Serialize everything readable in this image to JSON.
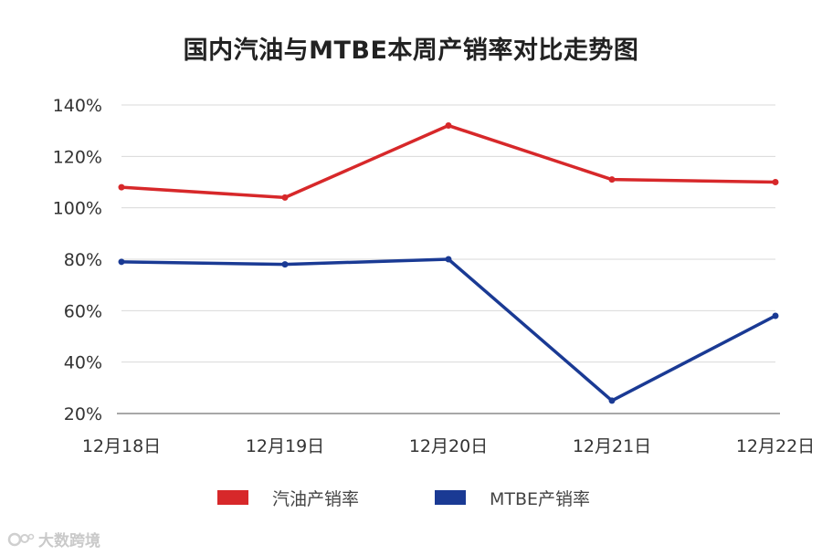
{
  "chart_data": {
    "type": "line",
    "title": "国内汽油与MTBE本周产销率对比走势图",
    "categories": [
      "12月18日",
      "12月19日",
      "12月20日",
      "12月21日",
      "12月22日"
    ],
    "series": [
      {
        "name": "汽油产销率",
        "values": [
          108,
          104,
          132,
          111,
          110
        ],
        "color": "#d7282a"
      },
      {
        "name": "MTBE产销率",
        "values": [
          79,
          78,
          80,
          25,
          58
        ],
        "color": "#1a3a94"
      }
    ],
    "ylim": [
      20,
      140
    ],
    "yticks": [
      20,
      40,
      60,
      80,
      100,
      120,
      140
    ],
    "ytick_labels": [
      "20%",
      "40%",
      "60%",
      "80%",
      "100%",
      "120%",
      "140%"
    ],
    "xlabel": "",
    "ylabel": "",
    "grid": true,
    "legend_position": "bottom"
  },
  "watermark": {
    "text": "大数跨境"
  }
}
